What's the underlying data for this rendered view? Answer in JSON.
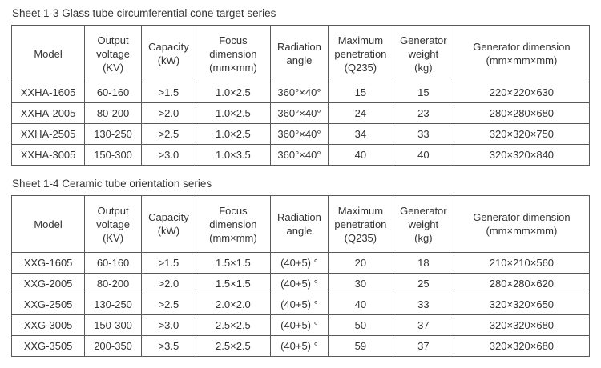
{
  "sheets": [
    {
      "title": "Sheet 1-3 Glass tube circumferential cone target series",
      "headers": [
        "Model",
        "Output\nvoltage\n(KV)",
        "Capacity\n(kW)",
        "Focus\ndimension\n(mm×mm)",
        "Radiation\nangle",
        "Maximum\npenetration\n(Q235)",
        "Generator\nweight\n(kg)",
        "Generator dimension\n(mm×mm×mm)"
      ],
      "rows": [
        [
          "XXHA-1605",
          "60-160",
          ">1.5",
          "1.0×2.5",
          "360°×40°",
          "15",
          "15",
          "220×220×630"
        ],
        [
          "XXHA-2005",
          "80-200",
          ">2.0",
          "1.0×2.5",
          "360°×40°",
          "24",
          "23",
          "280×280×680"
        ],
        [
          "XXHA-2505",
          "130-250",
          ">2.5",
          "1.0×2.5",
          "360°×40°",
          "34",
          "33",
          "320×320×750"
        ],
        [
          "XXHA-3005",
          "150-300",
          ">3.0",
          "1.0×3.5",
          "360°×40°",
          "40",
          "40",
          "320×320×840"
        ]
      ]
    },
    {
      "title": "Sheet 1-4 Ceramic tube orientation series",
      "headers": [
        "Model",
        "Output\nvoltage\n(KV)",
        "Capacity\n(kW)",
        "Focus\ndimension\n(mm×mm)",
        "Radiation\nangle",
        "Maximum\npenetration\n(Q235)",
        "Generator\nweight\n(kg)",
        "Generator dimension\n(mm×mm×mm)"
      ],
      "rows": [
        [
          "XXG-1605",
          "60-160",
          ">1.5",
          "1.5×1.5",
          "(40+5) °",
          "20",
          "18",
          "210×210×560"
        ],
        [
          "XXG-2005",
          "80-200",
          ">2.0",
          "1.5×1.5",
          "(40+5) °",
          "30",
          "25",
          "280×280×620"
        ],
        [
          "XXG-2505",
          "130-250",
          ">2.5",
          "2.0×2.0",
          "(40+5) °",
          "40",
          "33",
          "320×320×650"
        ],
        [
          "XXG-3005",
          "150-300",
          ">3.0",
          "2.5×2.5",
          "(40+5) °",
          "50",
          "37",
          "320×320×680"
        ],
        [
          "XXG-3505",
          "200-350",
          ">3.5",
          "2.5×2.5",
          "(40+5) °",
          "59",
          "37",
          "320×320×680"
        ]
      ]
    }
  ]
}
